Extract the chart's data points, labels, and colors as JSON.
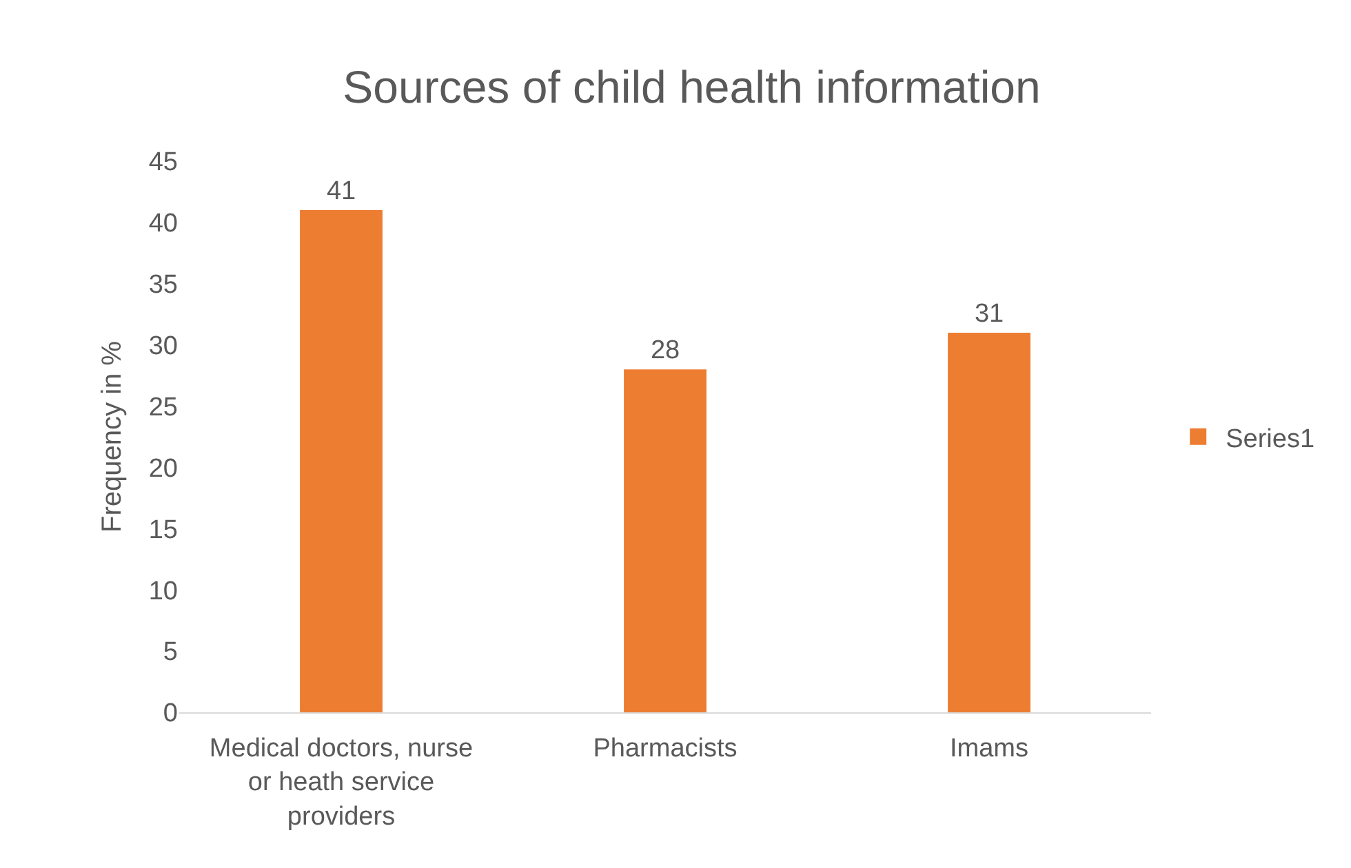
{
  "chart_data": {
    "type": "bar",
    "title": "Sources of child health information",
    "ylabel": "Frequency in %",
    "categories": [
      "Medical doctors, nurse or heath service providers",
      "Pharmacists",
      "Imams"
    ],
    "series": [
      {
        "name": "Series1",
        "color": "#ed7d31",
        "values": [
          41,
          28,
          31
        ]
      }
    ],
    "ylim": [
      0,
      45
    ],
    "yticks": [
      0,
      5,
      10,
      15,
      20,
      25,
      30,
      35,
      40,
      45
    ],
    "data_labels": true,
    "legend": "right"
  }
}
